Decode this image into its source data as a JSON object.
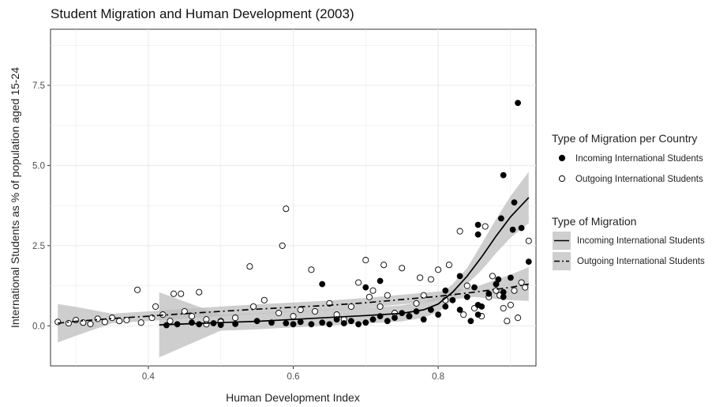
{
  "chart_data": {
    "type": "scatter",
    "title": "Student Migration and Human Development (2003)",
    "xlabel": "Human Development Index",
    "ylabel": "International Students as % of population aged 15-24",
    "xlim": [
      0.265,
      0.935
    ],
    "ylim": [
      -1.25,
      9.25
    ],
    "x_ticks": [
      0.4,
      0.6,
      0.8
    ],
    "x_tick_labels": [
      "0.4",
      "0.6",
      "0.8"
    ],
    "y_ticks": [
      0.0,
      2.5,
      5.0,
      7.5
    ],
    "y_tick_labels": [
      "0.0",
      "2.5",
      "5.0",
      "7.5"
    ],
    "grid": true,
    "legend_position": "right",
    "point_legend": {
      "title": "Type of Migration per Country",
      "items": [
        "Incoming International Students",
        "Outgoing International Students"
      ]
    },
    "line_legend": {
      "title": "Type of Migration",
      "items": [
        "Incoming International Students",
        "Outgoing International Students"
      ]
    },
    "series": [
      {
        "name": "Incoming International Students",
        "marker": "filled-circle",
        "points": [
          [
            0.425,
            0.02
          ],
          [
            0.44,
            0.05
          ],
          [
            0.46,
            0.1
          ],
          [
            0.47,
            0.05
          ],
          [
            0.49,
            0.08
          ],
          [
            0.5,
            0.03
          ],
          [
            0.52,
            0.06
          ],
          [
            0.55,
            0.15
          ],
          [
            0.57,
            0.1
          ],
          [
            0.59,
            0.08
          ],
          [
            0.6,
            0.05
          ],
          [
            0.61,
            0.12
          ],
          [
            0.625,
            0.05
          ],
          [
            0.64,
            0.1
          ],
          [
            0.65,
            0.05
          ],
          [
            0.66,
            0.2
          ],
          [
            0.67,
            0.08
          ],
          [
            0.68,
            0.15
          ],
          [
            0.69,
            0.05
          ],
          [
            0.7,
            0.1
          ],
          [
            0.71,
            0.2
          ],
          [
            0.72,
            0.3
          ],
          [
            0.73,
            0.15
          ],
          [
            0.74,
            0.25
          ],
          [
            0.75,
            0.4
          ],
          [
            0.76,
            0.3
          ],
          [
            0.77,
            0.45
          ],
          [
            0.78,
            0.2
          ],
          [
            0.79,
            0.5
          ],
          [
            0.8,
            0.35
          ],
          [
            0.81,
            0.6
          ],
          [
            0.82,
            0.8
          ],
          [
            0.83,
            0.5
          ],
          [
            0.84,
            0.9
          ],
          [
            0.85,
            1.2
          ],
          [
            0.86,
            0.6
          ],
          [
            0.87,
            1.0
          ],
          [
            0.88,
            1.3
          ],
          [
            0.89,
            0.9
          ],
          [
            0.9,
            1.5
          ],
          [
            0.64,
            1.3
          ],
          [
            0.72,
            1.4
          ],
          [
            0.7,
            1.2
          ],
          [
            0.81,
            1.1
          ],
          [
            0.83,
            1.55
          ],
          [
            0.845,
            0.15
          ],
          [
            0.855,
            0.35
          ],
          [
            0.855,
            0.65
          ],
          [
            0.89,
            1.05
          ],
          [
            0.855,
            2.85
          ],
          [
            0.855,
            3.15
          ],
          [
            0.887,
            3.35
          ],
          [
            0.89,
            4.7
          ],
          [
            0.905,
            3.85
          ],
          [
            0.91,
            6.95
          ],
          [
            0.915,
            3.05
          ],
          [
            0.925,
            2.0
          ],
          [
            0.903,
            3.0
          ],
          [
            0.883,
            1.45
          ],
          [
            0.88,
            1.3
          ]
        ],
        "smooth": [
          [
            0.415,
            0.03
          ],
          [
            0.45,
            0.06
          ],
          [
            0.5,
            0.1
          ],
          [
            0.55,
            0.14
          ],
          [
            0.6,
            0.2
          ],
          [
            0.65,
            0.26
          ],
          [
            0.7,
            0.32
          ],
          [
            0.75,
            0.39
          ],
          [
            0.78,
            0.5
          ],
          [
            0.8,
            0.68
          ],
          [
            0.82,
            1.05
          ],
          [
            0.84,
            1.55
          ],
          [
            0.86,
            2.15
          ],
          [
            0.88,
            2.8
          ],
          [
            0.9,
            3.4
          ],
          [
            0.925,
            4.0
          ]
        ]
      },
      {
        "name": "Outgoing International Students",
        "marker": "open-circle",
        "points": [
          [
            0.275,
            0.12
          ],
          [
            0.29,
            0.08
          ],
          [
            0.3,
            0.18
          ],
          [
            0.31,
            0.1
          ],
          [
            0.32,
            0.06
          ],
          [
            0.33,
            0.22
          ],
          [
            0.34,
            0.12
          ],
          [
            0.35,
            0.25
          ],
          [
            0.36,
            0.15
          ],
          [
            0.37,
            0.18
          ],
          [
            0.385,
            1.12
          ],
          [
            0.39,
            0.1
          ],
          [
            0.405,
            0.25
          ],
          [
            0.41,
            0.6
          ],
          [
            0.42,
            0.35
          ],
          [
            0.43,
            0.15
          ],
          [
            0.435,
            1.0
          ],
          [
            0.445,
            1.0
          ],
          [
            0.45,
            0.45
          ],
          [
            0.46,
            0.3
          ],
          [
            0.47,
            1.05
          ],
          [
            0.48,
            0.2
          ],
          [
            0.5,
            0.15
          ],
          [
            0.52,
            0.25
          ],
          [
            0.54,
            1.85
          ],
          [
            0.545,
            0.6
          ],
          [
            0.56,
            0.8
          ],
          [
            0.58,
            0.4
          ],
          [
            0.585,
            2.5
          ],
          [
            0.59,
            3.65
          ],
          [
            0.6,
            0.3
          ],
          [
            0.61,
            0.5
          ],
          [
            0.625,
            1.75
          ],
          [
            0.63,
            0.45
          ],
          [
            0.65,
            0.7
          ],
          [
            0.66,
            0.35
          ],
          [
            0.67,
            0.2
          ],
          [
            0.68,
            0.6
          ],
          [
            0.69,
            1.35
          ],
          [
            0.7,
            2.05
          ],
          [
            0.705,
            0.9
          ],
          [
            0.71,
            1.1
          ],
          [
            0.72,
            0.6
          ],
          [
            0.725,
            1.9
          ],
          [
            0.73,
            0.95
          ],
          [
            0.74,
            0.4
          ],
          [
            0.75,
            1.8
          ],
          [
            0.76,
            0.3
          ],
          [
            0.77,
            0.7
          ],
          [
            0.775,
            1.5
          ],
          [
            0.78,
            0.95
          ],
          [
            0.79,
            1.45
          ],
          [
            0.8,
            1.75
          ],
          [
            0.81,
            0.8
          ],
          [
            0.815,
            1.9
          ],
          [
            0.83,
            2.95
          ],
          [
            0.835,
            0.35
          ],
          [
            0.84,
            1.25
          ],
          [
            0.85,
            0.55
          ],
          [
            0.86,
            0.3
          ],
          [
            0.87,
            0.9
          ],
          [
            0.875,
            1.55
          ],
          [
            0.88,
            1.1
          ],
          [
            0.885,
            0.95
          ],
          [
            0.89,
            0.55
          ],
          [
            0.895,
            0.15
          ],
          [
            0.9,
            0.65
          ],
          [
            0.905,
            1.1
          ],
          [
            0.91,
            0.25
          ],
          [
            0.915,
            1.35
          ],
          [
            0.92,
            1.2
          ],
          [
            0.925,
            2.65
          ],
          [
            0.865,
            3.1
          ],
          [
            0.5,
            0.12
          ],
          [
            0.48,
            0.05
          ]
        ],
        "smooth": [
          [
            0.275,
            0.08
          ],
          [
            0.3,
            0.14
          ],
          [
            0.35,
            0.23
          ],
          [
            0.4,
            0.3
          ],
          [
            0.45,
            0.38
          ],
          [
            0.5,
            0.45
          ],
          [
            0.55,
            0.52
          ],
          [
            0.6,
            0.58
          ],
          [
            0.65,
            0.64
          ],
          [
            0.7,
            0.72
          ],
          [
            0.75,
            0.82
          ],
          [
            0.8,
            0.92
          ],
          [
            0.85,
            1.05
          ],
          [
            0.9,
            1.2
          ],
          [
            0.925,
            1.3
          ]
        ]
      }
    ],
    "colors": {
      "incoming_point": "#000000",
      "outgoing_point_fill": "#ffffff",
      "outgoing_point_stroke": "#000000",
      "grid": "#ebebeb",
      "confidence_band": "#bdbdbd",
      "line": "#000000"
    }
  }
}
